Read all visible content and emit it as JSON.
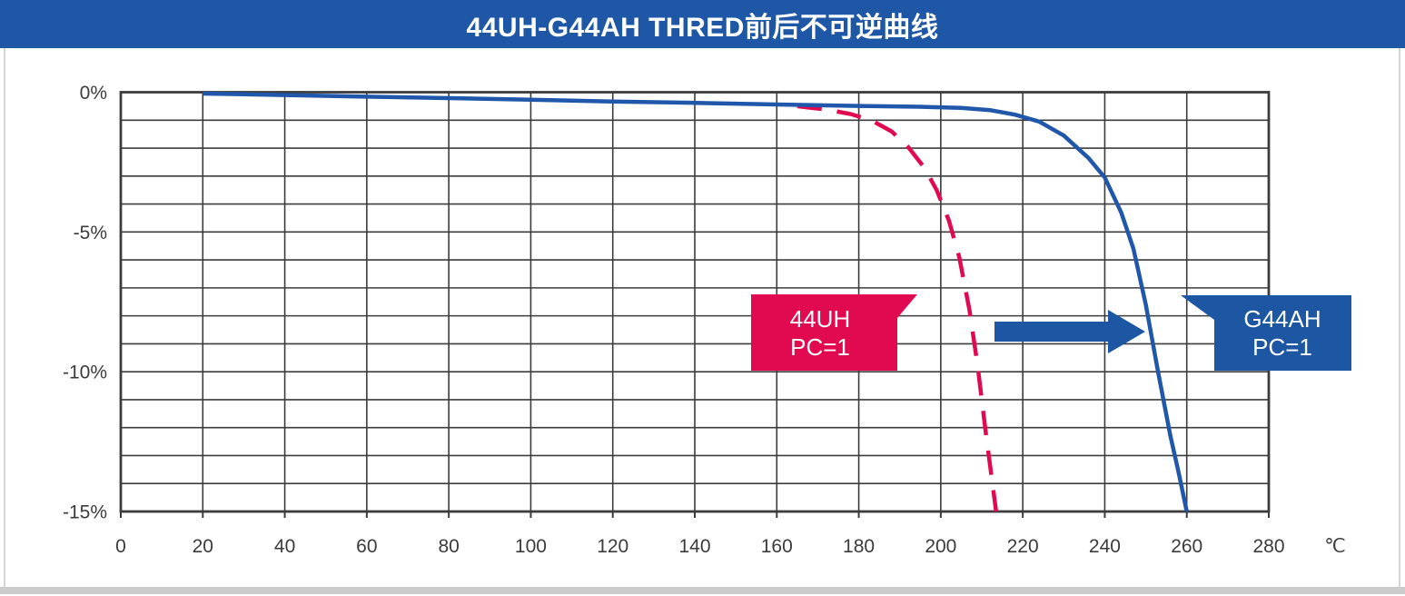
{
  "title_bar": {
    "text": "44UH-G44AH THRED前后不可逆曲线"
  },
  "colors": {
    "title_bar_bg": "#1d57a5",
    "title_text": "#ffffff",
    "grid_line": "#3c3c3c",
    "axis_text": "#3b3b3b",
    "footer_strip": "#cbcbcb",
    "edge_line": "#d6d6d6",
    "page_bg": "#ffffff"
  },
  "chart_data": {
    "type": "line",
    "title": "44UH-G44AH THRED前后不可逆曲线",
    "xlabel": "",
    "ylabel": "",
    "x_unit": "℃",
    "grid": true,
    "x_axis": {
      "min": 0,
      "max": 280,
      "grid_step": 20,
      "tick_values": [
        0,
        20,
        40,
        60,
        80,
        100,
        120,
        140,
        160,
        180,
        200,
        220,
        240,
        260,
        280
      ],
      "tick_labels": [
        "0",
        "20",
        "40",
        "60",
        "80",
        "100",
        "120",
        "140",
        "160",
        "180",
        "200",
        "220",
        "240",
        "260",
        "280"
      ]
    },
    "y_axis": {
      "min": -15,
      "max": 0,
      "grid_step": 1,
      "tick_values": [
        0,
        -5,
        -10,
        -15
      ],
      "tick_labels": [
        "0%",
        "-5%",
        "-10%",
        "-15%"
      ]
    },
    "series": [
      {
        "name": "44UH PC=1",
        "style": "dashed",
        "color": "#e10a50",
        "x": [
          165,
          172,
          178,
          183,
          188,
          192,
          196,
          199,
          202,
          204.5,
          207,
          209,
          211,
          213.5
        ],
        "y": [
          -0.5,
          -0.62,
          -0.78,
          -1.0,
          -1.4,
          -1.95,
          -2.7,
          -3.5,
          -4.6,
          -5.9,
          -7.8,
          -9.8,
          -12.2,
          -15
        ]
      },
      {
        "name": "G44AH PC=1",
        "style": "solid",
        "color": "#2057ab",
        "x": [
          20,
          40,
          60,
          80,
          100,
          120,
          140,
          160,
          180,
          195,
          205,
          212,
          218,
          224,
          230,
          236,
          240,
          244,
          247,
          250,
          253,
          256,
          258,
          260
        ],
        "y": [
          -0.05,
          -0.1,
          -0.16,
          -0.21,
          -0.27,
          -0.33,
          -0.38,
          -0.44,
          -0.49,
          -0.52,
          -0.56,
          -0.64,
          -0.8,
          -1.05,
          -1.55,
          -2.35,
          -3.05,
          -4.3,
          -5.6,
          -7.6,
          -10.0,
          -12.3,
          -13.6,
          -15
        ]
      }
    ],
    "annotations": {
      "flag_44uh": {
        "lines": [
          "44UH",
          "PC=1"
        ],
        "fill": "#e10a50",
        "text_color": "#ffffff"
      },
      "flag_g44ah": {
        "lines": [
          "G44AH",
          "PC=1"
        ],
        "fill": "#1d57a4",
        "text_color": "#ffffff"
      },
      "arrow": {
        "direction": "right",
        "fill": "#1d57a4"
      }
    }
  }
}
